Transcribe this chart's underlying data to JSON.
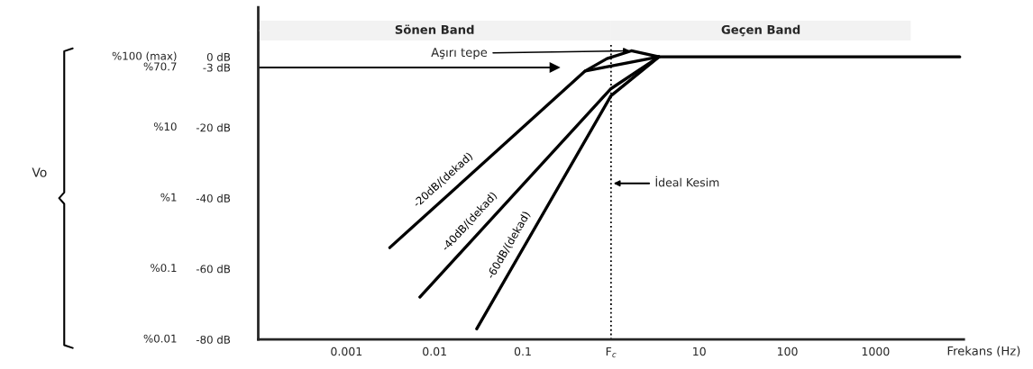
{
  "chart_data": {
    "type": "line",
    "xlabel": "Frekans (Hz)",
    "log": "x",
    "grid": false,
    "line_style": "solid",
    "xlim": [
      0.0001,
      10000
    ],
    "xticks": [
      0.001,
      0.01,
      0.1,
      {
        "value": 1,
        "label": "F$_{c}$"
      },
      10,
      100,
      1000
    ],
    "ylim": [
      -80,
      14
    ],
    "yticks": [
      {
        "value": 0,
        "label": "0 dB"
      },
      {
        "value": -3,
        "label": "-3 dB"
      },
      {
        "value": -20,
        "label": "-20 dB"
      },
      {
        "value": -40,
        "label": "-40 dB"
      },
      {
        "value": -60,
        "label": "-60 dB"
      },
      {
        "value": -80,
        "label": "-80 dB"
      }
    ],
    "series": [
      {
        "name": "-20dB/(dekad)",
        "color": "#000000",
        "x": [
          0.0031,
          0.51,
          0.9,
          1.7,
          3.5,
          9000
        ],
        "values": [
          -54,
          -4,
          -0.5,
          1.7,
          0,
          0
        ]
      },
      {
        "name": "-40dB/(dekad)",
        "color": "#000000",
        "x": [
          0.0068,
          1,
          3.5
        ],
        "values": [
          -68,
          -9,
          0
        ]
      },
      {
        "name": "-60dB/(dekad)",
        "color": "#000000",
        "x": [
          0.03,
          1,
          3.5
        ],
        "values": [
          -77,
          -11,
          0
        ]
      },
      {
        "color": "#000000",
        "x": [
          0.51,
          3.5
        ],
        "values": [
          -4,
          0
        ]
      }
    ],
    "ref_lines": [
      {
        "axis": "y",
        "value": -3
      },
      {
        "axis": "x",
        "value": 1,
        "label": "İdeal Kesim",
        "line_style": "dotted"
      }
    ],
    "bands": [
      {
        "axis": "x",
        "from": 0.0001,
        "to": 1,
        "label": "Sönen Band",
        "color": "#f2f2f2"
      },
      {
        "axis": "x",
        "from": 1,
        "to": 2500,
        "label": "Geçen Band",
        "color": "#f2f2f2"
      }
    ],
    "annotations": [
      "%100 (max)",
      "%70.7",
      "%10",
      "%1",
      "%0.1",
      "%0.01",
      "Vo",
      {
        "text": "Aşırı tepe",
        "x": 1.7,
        "y": 1.7
      }
    ]
  }
}
